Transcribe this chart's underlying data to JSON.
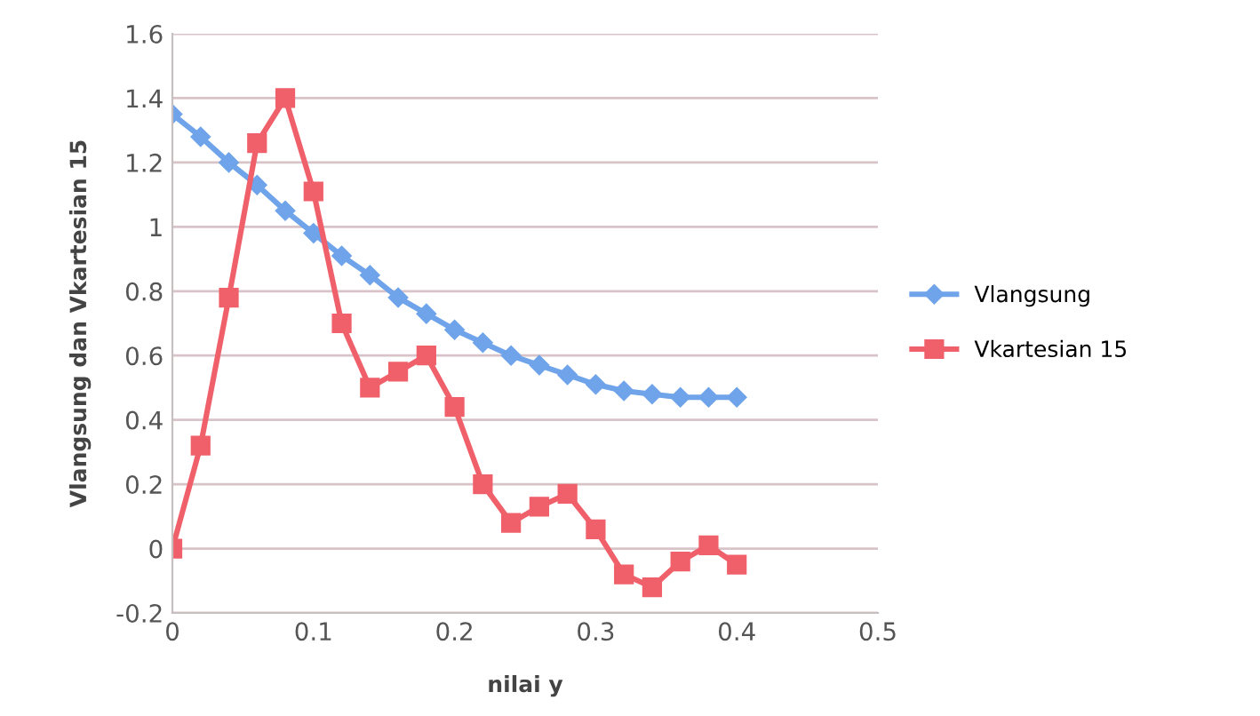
{
  "chart_data": {
    "type": "line",
    "xlabel": "nilai y",
    "ylabel": "Vlangsung dan Vkartesian 15",
    "x": [
      0,
      0.02,
      0.04,
      0.06,
      0.08,
      0.1,
      0.12,
      0.14,
      0.16,
      0.18,
      0.2,
      0.22,
      0.24,
      0.26,
      0.28,
      0.3,
      0.32,
      0.34,
      0.36,
      0.38,
      0.4
    ],
    "series": [
      {
        "name": "Vlangsung",
        "color": "#6fa3ea",
        "marker": "diamond",
        "values": [
          1.35,
          1.28,
          1.2,
          1.13,
          1.05,
          0.98,
          0.91,
          0.85,
          0.78,
          0.73,
          0.68,
          0.64,
          0.6,
          0.57,
          0.54,
          0.51,
          0.49,
          0.48,
          0.47,
          0.47,
          0.47
        ]
      },
      {
        "name": "Vkartesian 15",
        "color": "#f0606a",
        "marker": "square",
        "values": [
          0,
          0.32,
          0.78,
          1.26,
          1.4,
          1.11,
          0.7,
          0.5,
          0.55,
          0.6,
          0.44,
          0.2,
          0.08,
          0.13,
          0.17,
          0.06,
          -0.08,
          -0.12,
          -0.04,
          0.01,
          -0.05
        ]
      }
    ],
    "xlim": [
      0,
      0.5
    ],
    "xticks": [
      0,
      0.1,
      0.2,
      0.3,
      0.4,
      0.5
    ],
    "ylim": [
      -0.2,
      1.6
    ],
    "yticks": [
      -0.2,
      0,
      0.2,
      0.4,
      0.6,
      0.8,
      1,
      1.2,
      1.4,
      1.6
    ],
    "grid": "y",
    "legend": "right",
    "line_style": "solid"
  }
}
